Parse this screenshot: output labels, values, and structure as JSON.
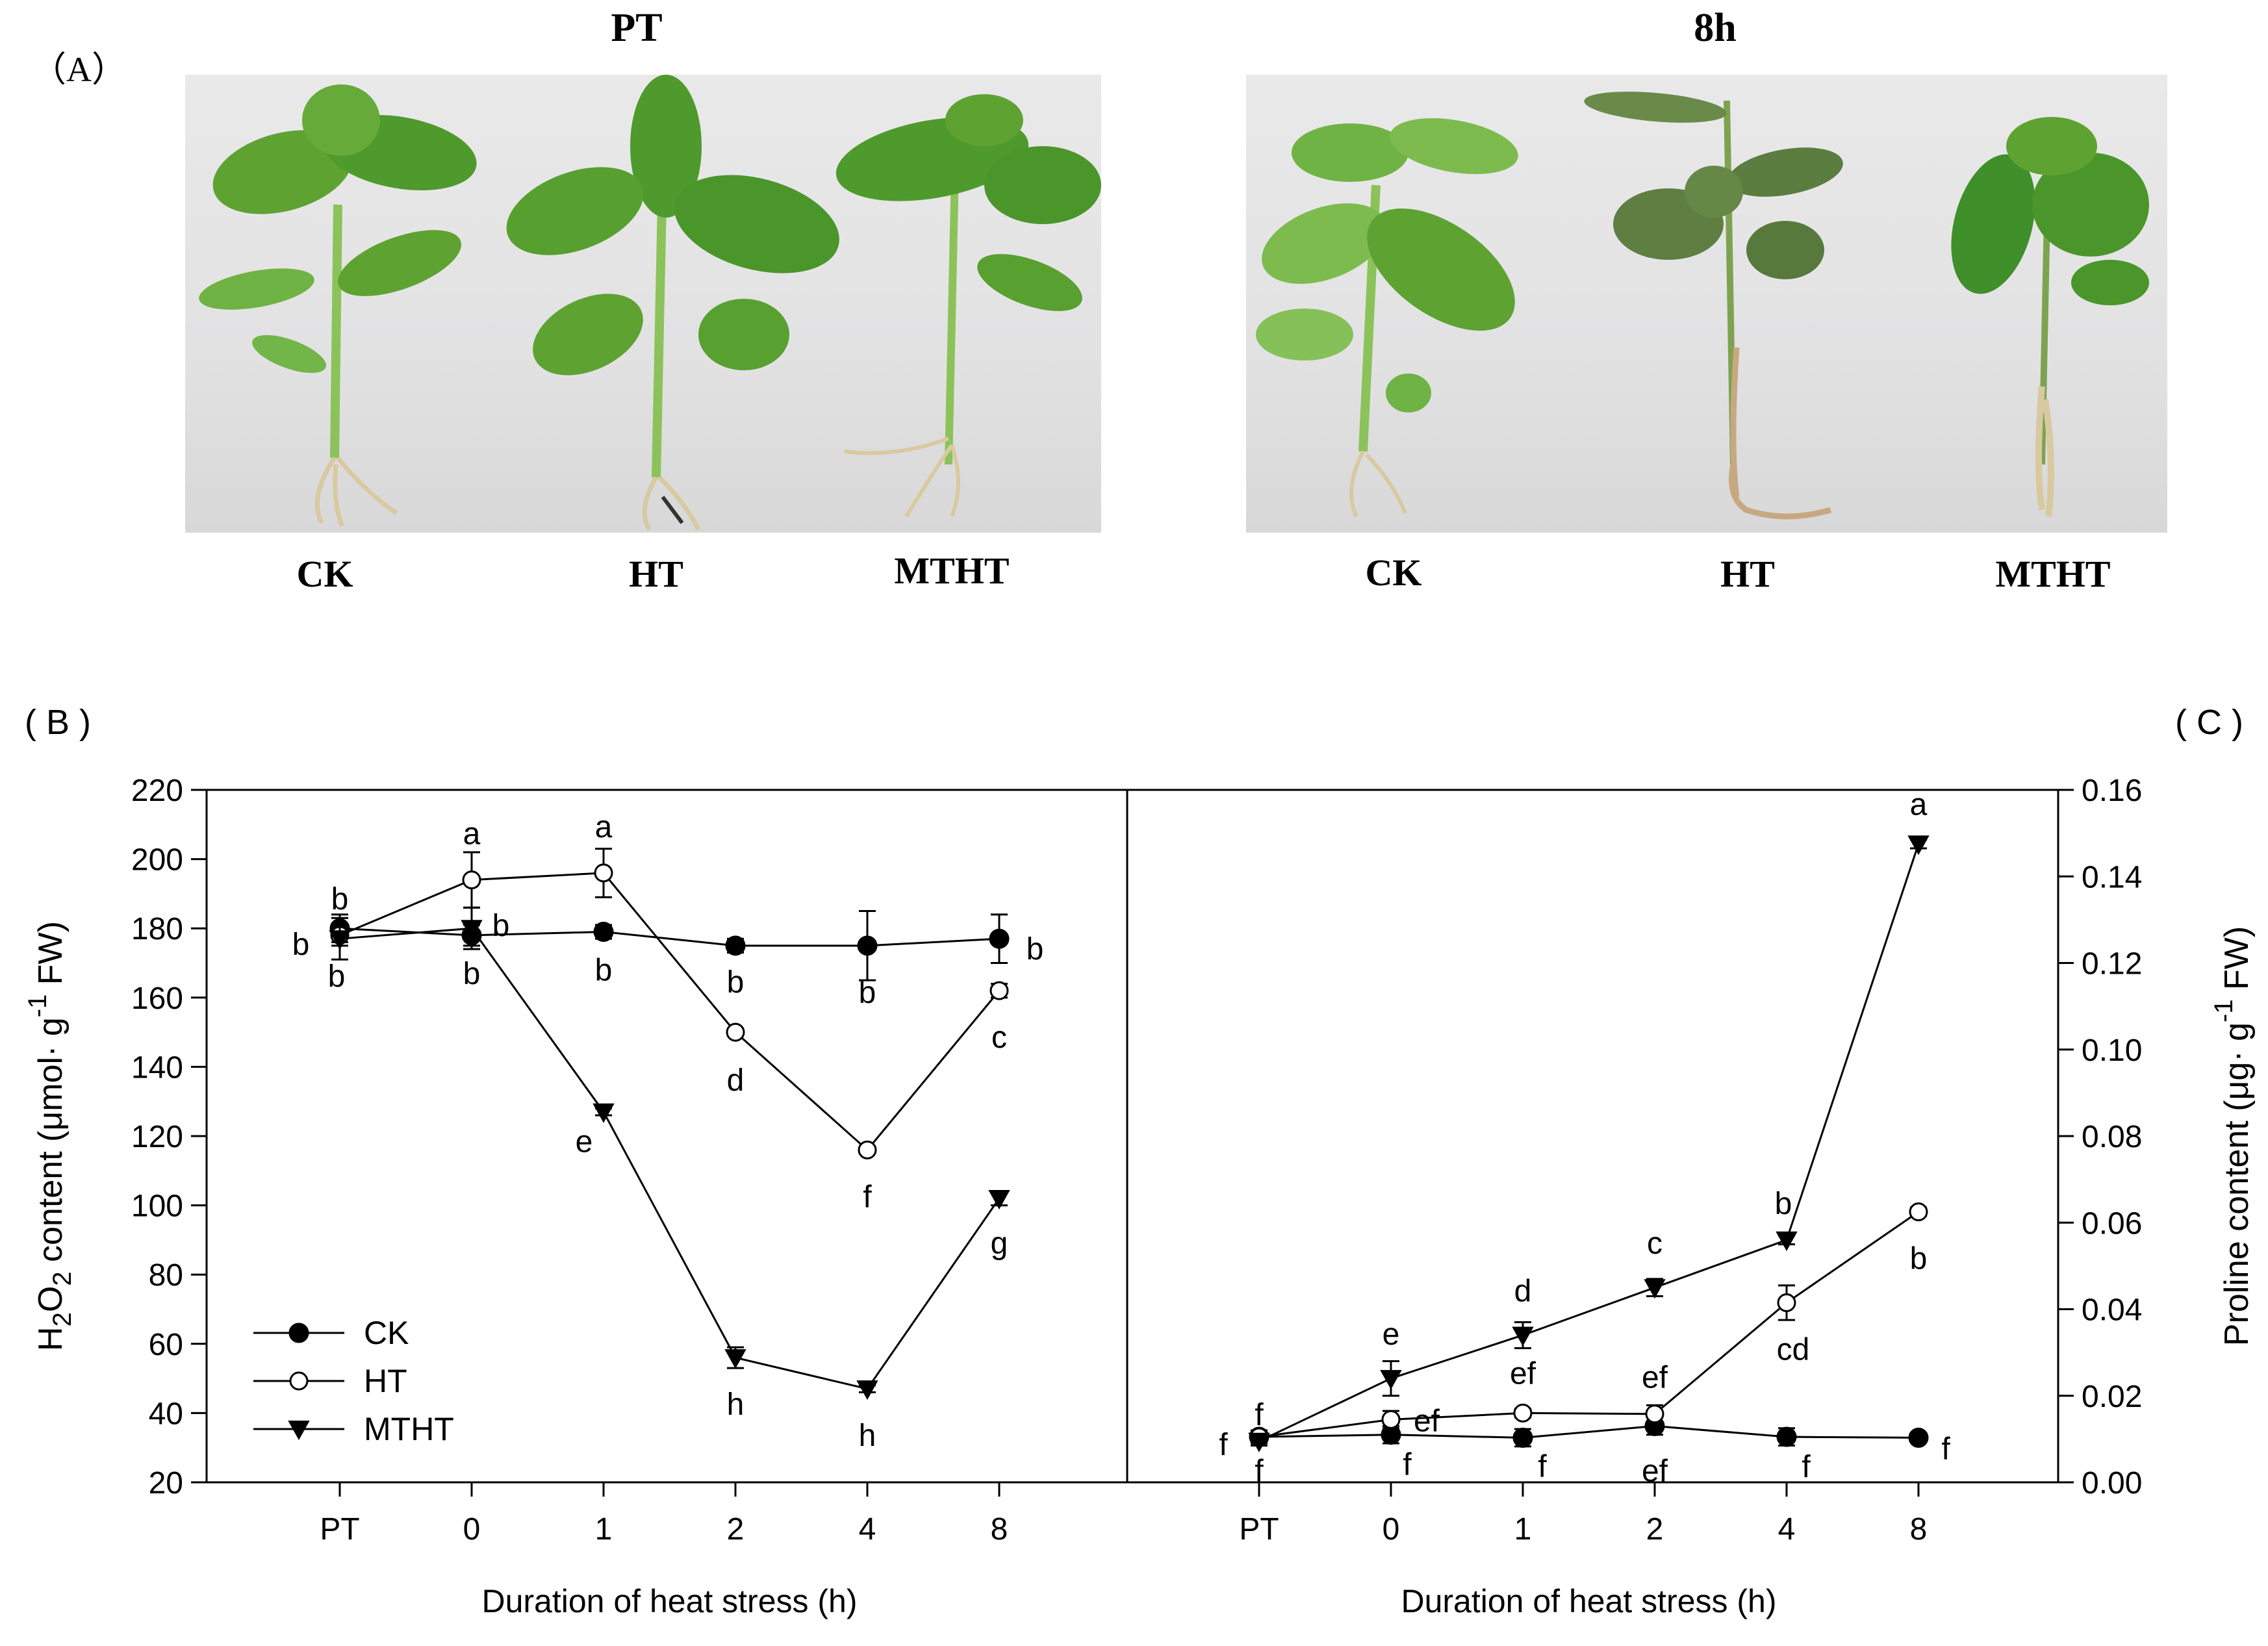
{
  "panel_a": {
    "letter": "（A）",
    "groups": [
      {
        "title": "PT",
        "labels": [
          "CK",
          "HT",
          "MTHT"
        ]
      },
      {
        "title": "8h",
        "labels": [
          "CK",
          "HT",
          "MTHT"
        ]
      }
    ]
  },
  "panel_b": {
    "letter": "( B )"
  },
  "panel_c": {
    "letter": "( C )"
  },
  "colors": {
    "line": "#000000",
    "background": "#ffffff",
    "leaf_green": "#4f9a2c",
    "stem_green": "#8cc25a",
    "root": "#d8c9a0"
  },
  "chart_data": [
    {
      "type": "line",
      "panel": "B",
      "x": [
        "PT",
        "0",
        "1",
        "2",
        "4",
        "8"
      ],
      "xlabel": "Duration of heat stress (h)",
      "ylabel": "H2O2 content (μmol· g-1 FW)",
      "ylim": [
        20,
        220
      ],
      "yticks": [
        20,
        40,
        60,
        80,
        100,
        120,
        140,
        160,
        180,
        200,
        220
      ],
      "legend": {
        "position": "bottom-left",
        "entries": [
          "CK",
          "HT",
          "MTHT"
        ]
      },
      "series": [
        {
          "name": "CK",
          "marker": "filled-circle",
          "values": [
            180,
            178,
            179,
            175,
            175,
            177
          ],
          "errors": [
            4,
            3,
            2,
            2,
            10,
            7
          ],
          "letters": [
            "b",
            "b",
            "b",
            "b",
            "b",
            "b"
          ]
        },
        {
          "name": "HT",
          "marker": "open-circle",
          "values": [
            178,
            194,
            196,
            150,
            116,
            162
          ],
          "errors": [
            3,
            8,
            7,
            1,
            1,
            2
          ],
          "letters": [
            "b",
            "a",
            "a",
            "d",
            "f",
            "c"
          ]
        },
        {
          "name": "MTHT",
          "marker": "filled-triangle-down",
          "values": [
            177,
            180,
            127,
            56,
            47,
            102
          ],
          "errors": [
            6,
            6,
            1,
            3,
            1,
            2
          ],
          "letters": [
            "b",
            "b",
            "e",
            "h",
            "h",
            "g"
          ]
        }
      ]
    },
    {
      "type": "line",
      "panel": "C",
      "x": [
        "PT",
        "0",
        "1",
        "2",
        "4",
        "8"
      ],
      "xlabel": "Duration of heat stress (h)",
      "ylabel": "Proline content (μg· g-1 FW)",
      "ylim": [
        0,
        0.16
      ],
      "yticks": [
        0.0,
        0.02,
        0.04,
        0.06,
        0.08,
        0.1,
        0.12,
        0.14,
        0.16
      ],
      "series": [
        {
          "name": "CK",
          "values": [
            0.0105,
            0.011,
            0.0103,
            0.013,
            0.0105,
            0.0103
          ],
          "errors": [
            0.0015,
            0.002,
            0.002,
            0.002,
            0.002,
            0.001
          ],
          "letters": [
            "f",
            "f",
            "f",
            "ef",
            "f",
            "f"
          ]
        },
        {
          "name": "HT",
          "values": [
            0.0105,
            0.0145,
            0.016,
            0.0158,
            0.0415,
            0.0625
          ],
          "errors": [
            0.0015,
            0.002,
            0.001,
            0.002,
            0.004,
            0.001
          ],
          "letters": [
            "f",
            "ef",
            "ef",
            "ef",
            "cd",
            "b"
          ]
        },
        {
          "name": "MTHT",
          "values": [
            0.0095,
            0.024,
            0.034,
            0.045,
            0.056,
            0.1475
          ],
          "errors": [
            0.001,
            0.004,
            0.003,
            0.002,
            0.001,
            0.001
          ],
          "letters": [
            "f",
            "e",
            "d",
            "c",
            "b",
            "a"
          ]
        }
      ]
    }
  ]
}
